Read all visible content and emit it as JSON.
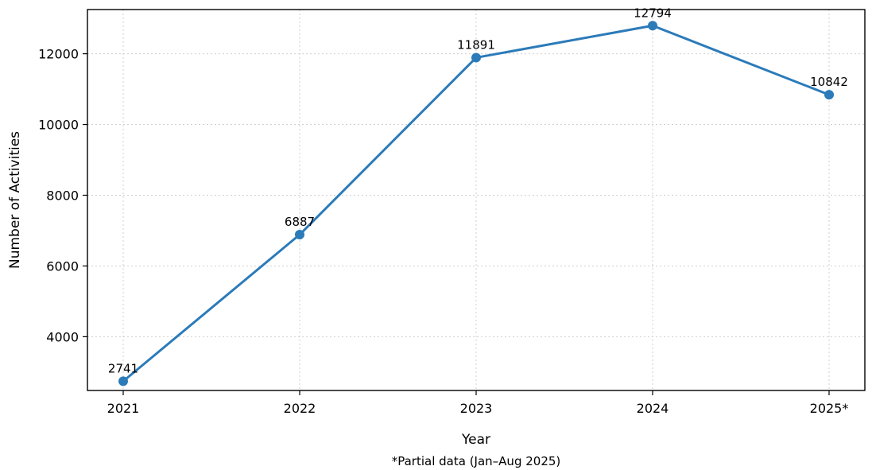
{
  "chart_data": {
    "type": "line",
    "title": "",
    "xlabel": "Year",
    "ylabel": "Number of Activities",
    "note": "*Partial data (Jan–Aug 2025)",
    "categories": [
      "2021",
      "2022",
      "2023",
      "2024",
      "2025*"
    ],
    "series": [
      {
        "values": [
          2741,
          6887,
          11891,
          12794,
          10842
        ],
        "color": "#2b7bb9"
      }
    ],
    "data_labels": [
      "2741",
      "6887",
      "11891",
      "12794",
      "10842"
    ],
    "yticks": [
      4000,
      6000,
      8000,
      10000,
      12000
    ],
    "ytick_labels": [
      "4000",
      "6000",
      "8000",
      "10000",
      "12000"
    ],
    "ylim": [
      2480,
      13250
    ],
    "grid": true,
    "legend": "none"
  }
}
